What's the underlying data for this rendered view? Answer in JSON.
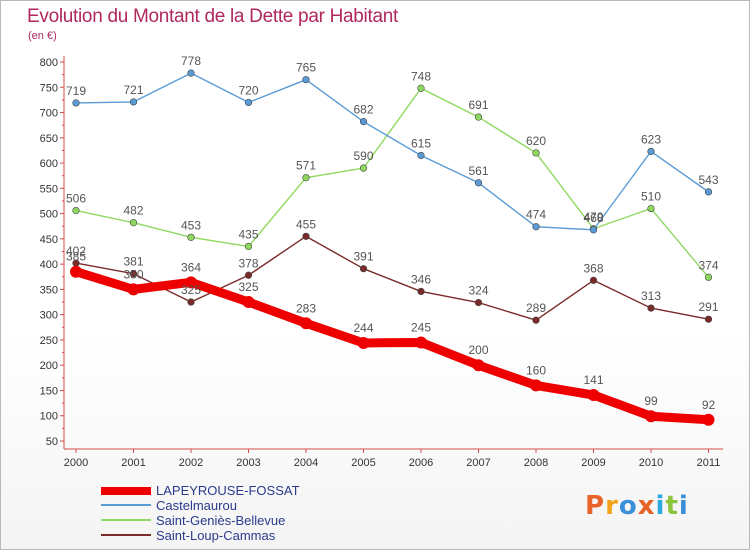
{
  "title": "Evolution du Montant de la Dette par Habitant",
  "unit": "(en €)",
  "logo": {
    "text": "Proxiti",
    "colors": [
      "#e8632a",
      "#f2a21b",
      "#3a8fd8",
      "#e8632a",
      "#2ca9df",
      "#8cc43c",
      "#3a8fd8"
    ]
  },
  "chart_data": {
    "type": "line",
    "title": "Evolution du Montant de la Dette par Habitant",
    "subtitle": "(en €)",
    "xlabel": "",
    "ylabel": "",
    "x": [
      "2000",
      "2001",
      "2002",
      "2003",
      "2004",
      "2005",
      "2006",
      "2007",
      "2008",
      "2009",
      "2010",
      "2011"
    ],
    "yticks": [
      50,
      100,
      150,
      200,
      250,
      300,
      350,
      400,
      450,
      500,
      550,
      600,
      650,
      700,
      750,
      800
    ],
    "ylim": [
      50,
      800
    ],
    "grid": false,
    "legend_position": "bottom-left",
    "series": [
      {
        "name": "LAPEYROUSE-FOSSAT",
        "color": "#ee0000",
        "values": [
          385,
          350,
          364,
          325,
          283,
          244,
          245,
          200,
          160,
          141,
          99,
          92
        ]
      },
      {
        "name": "Castelmaurou",
        "color": "#5b9bd5",
        "values": [
          719,
          721,
          778,
          720,
          765,
          682,
          615,
          561,
          474,
          468,
          623,
          543
        ]
      },
      {
        "name": "Saint-Geniès-Bellevue",
        "color": "#8fd85f",
        "values": [
          506,
          482,
          453,
          435,
          571,
          590,
          748,
          691,
          620,
          470,
          510,
          374
        ]
      },
      {
        "name": "Saint-Loup-Cammas",
        "color": "#7b2a2a",
        "values": [
          402,
          381,
          325,
          378,
          455,
          391,
          346,
          324,
          289,
          368,
          313,
          291
        ]
      }
    ]
  }
}
